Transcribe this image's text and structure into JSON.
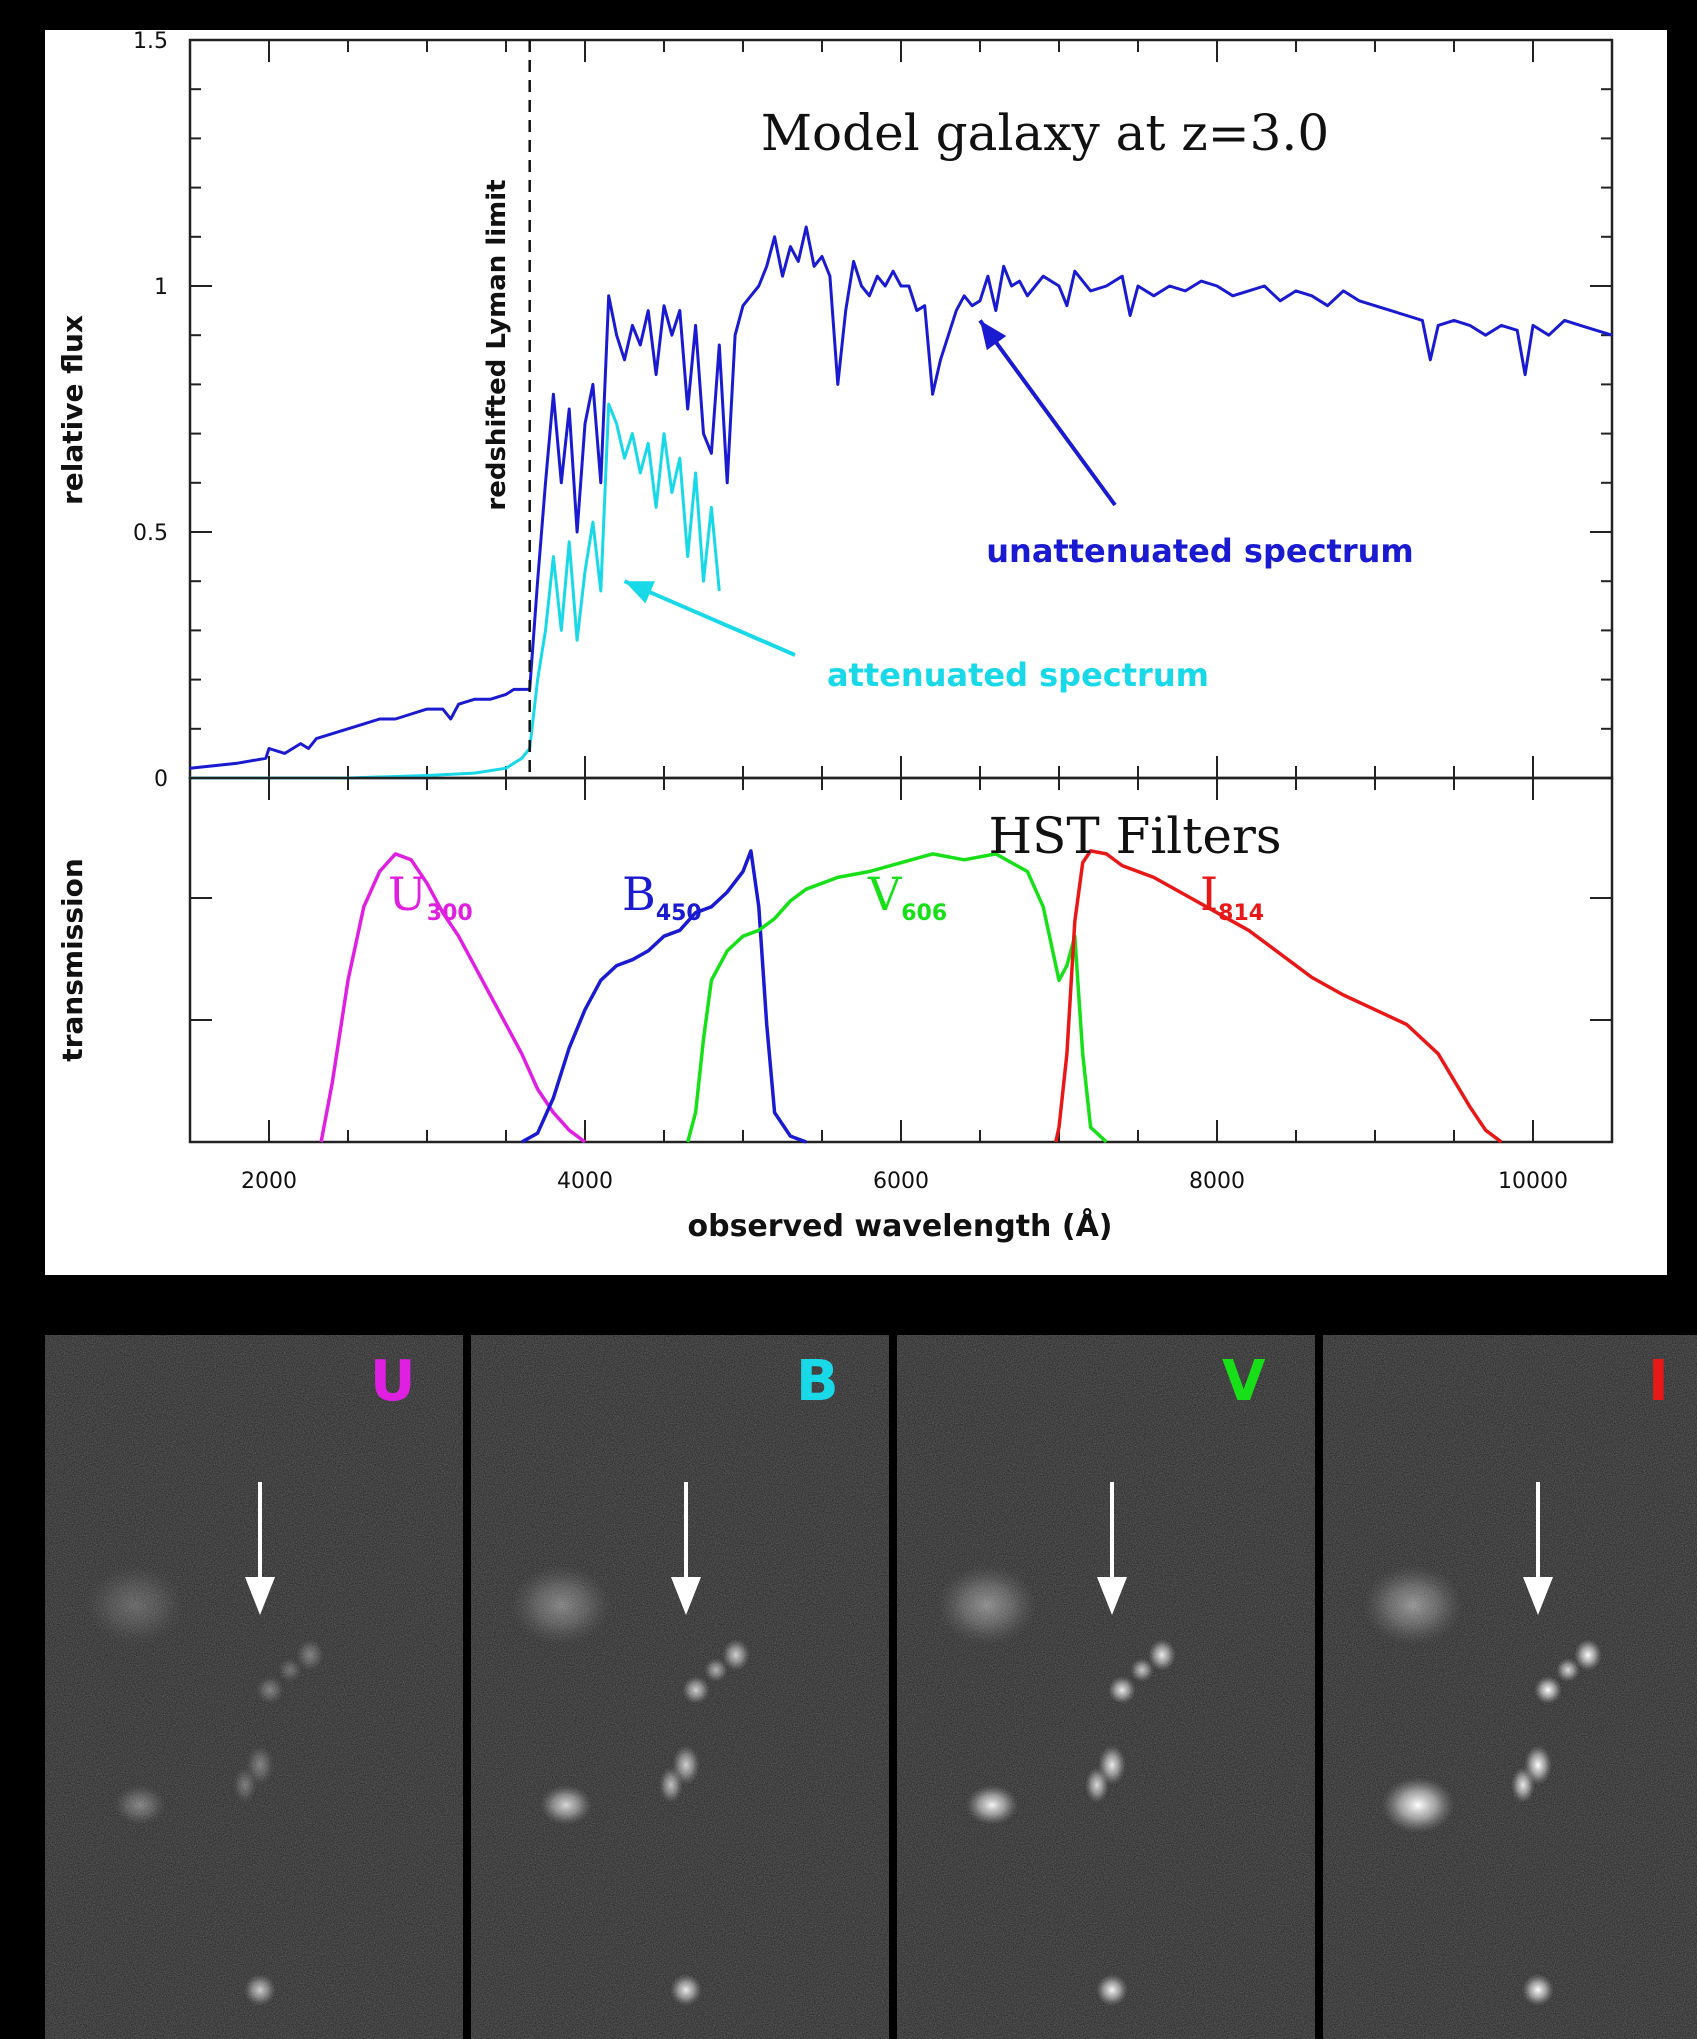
{
  "chart_data": [
    {
      "type": "line",
      "title": "Model galaxy at z=3.0",
      "xlabel": "observed wavelength (Å)",
      "ylabel": "relative flux",
      "xlim": [
        1500,
        10500
      ],
      "ylim": [
        0,
        1.5
      ],
      "yticks": [
        {
          "v": 0,
          "label": "0"
        },
        {
          "v": 0.5,
          "label": "0.5"
        },
        {
          "v": 1,
          "label": "1"
        },
        {
          "v": 1.5,
          "label": "1.5"
        }
      ],
      "grid": false,
      "annotations": {
        "lyman_limit": {
          "x": 3650,
          "label": "redshifted Lyman limit"
        },
        "unattenuated_label": "unattenuated spectrum",
        "attenuated_label": "attenuated spectrum"
      },
      "series": [
        {
          "name": "unattenuated spectrum",
          "color": "#1a1ad0",
          "x": [
            1500,
            1800,
            1980,
            2000,
            2100,
            2200,
            2250,
            2300,
            2400,
            2500,
            2600,
            2700,
            2800,
            2900,
            3000,
            3100,
            3150,
            3200,
            3300,
            3400,
            3500,
            3550,
            3600,
            3650,
            3700,
            3750,
            3800,
            3850,
            3900,
            3950,
            4000,
            4050,
            4100,
            4150,
            4200,
            4250,
            4300,
            4350,
            4400,
            4450,
            4500,
            4550,
            4600,
            4650,
            4700,
            4750,
            4800,
            4850,
            4900,
            4950,
            5000,
            5050,
            5100,
            5150,
            5200,
            5250,
            5300,
            5350,
            5400,
            5450,
            5500,
            5550,
            5600,
            5650,
            5700,
            5750,
            5800,
            5850,
            5900,
            5950,
            6000,
            6050,
            6100,
            6150,
            6200,
            6250,
            6300,
            6350,
            6400,
            6450,
            6500,
            6550,
            6600,
            6650,
            6700,
            6750,
            6800,
            6900,
            7000,
            7050,
            7100,
            7200,
            7300,
            7400,
            7450,
            7500,
            7600,
            7700,
            7800,
            7900,
            8000,
            8100,
            8200,
            8300,
            8400,
            8500,
            8600,
            8700,
            8800,
            8900,
            9000,
            9100,
            9200,
            9300,
            9350,
            9400,
            9500,
            9600,
            9700,
            9800,
            9900,
            9950,
            10000,
            10100,
            10200,
            10300,
            10400,
            10500
          ],
          "y": [
            0.02,
            0.03,
            0.04,
            0.06,
            0.05,
            0.07,
            0.06,
            0.08,
            0.09,
            0.1,
            0.11,
            0.12,
            0.12,
            0.13,
            0.14,
            0.14,
            0.12,
            0.15,
            0.16,
            0.16,
            0.17,
            0.18,
            0.18,
            0.18,
            0.4,
            0.6,
            0.78,
            0.6,
            0.75,
            0.5,
            0.72,
            0.8,
            0.6,
            0.98,
            0.9,
            0.85,
            0.92,
            0.88,
            0.95,
            0.82,
            0.96,
            0.9,
            0.95,
            0.75,
            0.92,
            0.7,
            0.66,
            0.88,
            0.6,
            0.9,
            0.96,
            0.98,
            1.0,
            1.04,
            1.1,
            1.02,
            1.08,
            1.05,
            1.12,
            1.04,
            1.06,
            1.02,
            0.8,
            0.95,
            1.05,
            1.0,
            0.98,
            1.02,
            1.0,
            1.03,
            1.0,
            1.0,
            0.95,
            0.96,
            0.78,
            0.85,
            0.9,
            0.95,
            0.98,
            0.96,
            0.97,
            1.02,
            0.95,
            1.04,
            1.0,
            1.01,
            0.98,
            1.02,
            1.0,
            0.96,
            1.03,
            0.99,
            1.0,
            1.02,
            0.94,
            1.0,
            0.98,
            1.0,
            0.99,
            1.01,
            1.0,
            0.98,
            0.99,
            1.0,
            0.97,
            0.99,
            0.98,
            0.96,
            0.99,
            0.97,
            0.96,
            0.95,
            0.94,
            0.93,
            0.85,
            0.92,
            0.93,
            0.92,
            0.9,
            0.92,
            0.91,
            0.82,
            0.92,
            0.9,
            0.93,
            0.92,
            0.91,
            0.9
          ]
        },
        {
          "name": "attenuated spectrum",
          "color": "#19d8e8",
          "x": [
            1500,
            2000,
            2500,
            3000,
            3300,
            3500,
            3550,
            3600,
            3650,
            3700,
            3750,
            3800,
            3850,
            3900,
            3950,
            4000,
            4050,
            4100,
            4150,
            4200,
            4250,
            4300,
            4350,
            4400,
            4450,
            4500,
            4550,
            4600,
            4650,
            4700,
            4750,
            4800,
            4850
          ],
          "y": [
            0.0,
            0.0,
            0.0,
            0.005,
            0.01,
            0.02,
            0.03,
            0.04,
            0.06,
            0.2,
            0.3,
            0.45,
            0.3,
            0.48,
            0.28,
            0.42,
            0.52,
            0.38,
            0.76,
            0.72,
            0.65,
            0.7,
            0.62,
            0.68,
            0.55,
            0.7,
            0.58,
            0.65,
            0.45,
            0.62,
            0.4,
            0.55,
            0.38
          ]
        }
      ]
    },
    {
      "type": "line",
      "title": "HST Filters",
      "xlabel": "observed wavelength (Å)",
      "ylabel": "transmission",
      "xlim": [
        1500,
        10500
      ],
      "xticks": [
        {
          "v": 2000,
          "label": "2000"
        },
        {
          "v": 4000,
          "label": "4000"
        },
        {
          "v": 6000,
          "label": "6000"
        },
        {
          "v": 8000,
          "label": "8000"
        },
        {
          "v": 10000,
          "label": "10000"
        }
      ],
      "ylim": [
        0,
        1
      ],
      "series": [
        {
          "name": "U",
          "sub": "300",
          "color": "#e020e0",
          "x": [
            2330,
            2400,
            2500,
            2600,
            2700,
            2800,
            2900,
            3000,
            3100,
            3200,
            3300,
            3400,
            3500,
            3600,
            3700,
            3800,
            3900,
            4000
          ],
          "y": [
            0,
            0.2,
            0.55,
            0.8,
            0.92,
            0.98,
            0.96,
            0.88,
            0.78,
            0.7,
            0.6,
            0.5,
            0.4,
            0.3,
            0.18,
            0.1,
            0.04,
            0
          ]
        },
        {
          "name": "B",
          "sub": "450",
          "color": "#1a1ad0",
          "x": [
            3600,
            3700,
            3800,
            3900,
            4000,
            4100,
            4200,
            4300,
            4400,
            4500,
            4600,
            4700,
            4800,
            4900,
            5000,
            5050,
            5100,
            5150,
            5200,
            5300,
            5400
          ],
          "y": [
            0,
            0.03,
            0.15,
            0.32,
            0.45,
            0.55,
            0.6,
            0.62,
            0.65,
            0.7,
            0.72,
            0.78,
            0.8,
            0.85,
            0.92,
            0.99,
            0.8,
            0.4,
            0.1,
            0.02,
            0
          ]
        },
        {
          "name": "V",
          "sub": "606",
          "color": "#18e018",
          "x": [
            4650,
            4700,
            4750,
            4800,
            4900,
            5000,
            5100,
            5200,
            5300,
            5400,
            5600,
            5800,
            6000,
            6200,
            6400,
            6600,
            6800,
            6900,
            7000,
            7050,
            7100,
            7150,
            7200,
            7300
          ],
          "y": [
            0,
            0.1,
            0.35,
            0.55,
            0.65,
            0.7,
            0.72,
            0.76,
            0.82,
            0.86,
            0.9,
            0.92,
            0.95,
            0.98,
            0.96,
            0.98,
            0.92,
            0.8,
            0.55,
            0.6,
            0.7,
            0.3,
            0.05,
            0
          ]
        },
        {
          "name": "I",
          "sub": "814",
          "color": "#e81818",
          "x": [
            6980,
            7000,
            7050,
            7100,
            7150,
            7200,
            7300,
            7400,
            7600,
            7800,
            8000,
            8200,
            8400,
            8600,
            8800,
            9000,
            9200,
            9400,
            9600,
            9700,
            9800
          ],
          "y": [
            0,
            0.05,
            0.3,
            0.75,
            0.95,
            0.99,
            0.98,
            0.94,
            0.9,
            0.84,
            0.78,
            0.72,
            0.64,
            0.56,
            0.5,
            0.45,
            0.4,
            0.3,
            0.12,
            0.04,
            0
          ]
        }
      ]
    }
  ],
  "panels": [
    {
      "label": "U",
      "color": "#e020e0",
      "bright": 0.35
    },
    {
      "label": "B",
      "color": "#19d8e8",
      "bright": 0.75
    },
    {
      "label": "V",
      "color": "#18e018",
      "bright": 0.9
    },
    {
      "label": "I",
      "color": "#e81818",
      "bright": 1.0
    }
  ]
}
